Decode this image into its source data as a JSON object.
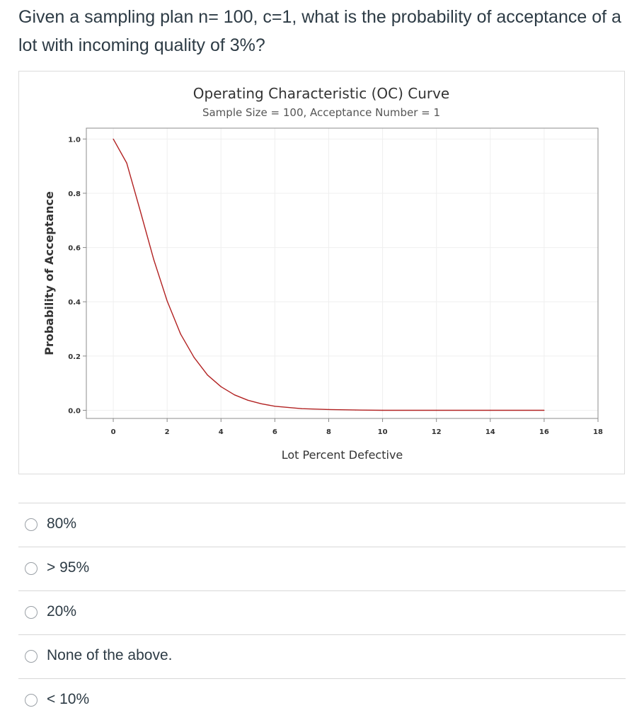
{
  "question": {
    "text": "Given a sampling plan n= 100, c=1, what is the probability of acceptance of a lot with incoming quality of 3%?"
  },
  "chart_data": {
    "type": "line",
    "title": "Operating Characteristic (OC) Curve",
    "subtitle": "Sample Size = 100, Acceptance Number = 1",
    "xlabel": "Lot Percent Defective",
    "ylabel": "Probability of Acceptance",
    "xlim": [
      -1,
      18
    ],
    "ylim": [
      -0.03,
      1.04
    ],
    "x_ticks": [
      0,
      2,
      4,
      6,
      8,
      10,
      12,
      14,
      16,
      18
    ],
    "y_ticks": [
      0.0,
      0.2,
      0.4,
      0.6,
      0.8,
      1.0
    ],
    "x_tick_labels": [
      "0",
      "2",
      "4",
      "6",
      "8",
      "10",
      "12",
      "14",
      "16",
      "18"
    ],
    "y_tick_labels": [
      "0.0",
      "0.2",
      "0.4",
      "0.6",
      "0.8",
      "1.0"
    ],
    "grid": true,
    "series": [
      {
        "color": "#b22222",
        "x": [
          0,
          0.5,
          1,
          1.5,
          2,
          2.5,
          3,
          3.5,
          4,
          4.5,
          5,
          5.5,
          6,
          7,
          8,
          9,
          10,
          12,
          14,
          16
        ],
        "y": [
          1.0,
          0.911,
          0.736,
          0.557,
          0.403,
          0.281,
          0.195,
          0.13,
          0.087,
          0.057,
          0.037,
          0.024,
          0.015,
          0.006,
          0.003,
          0.001,
          0.0,
          0.0,
          0.0,
          0.0
        ]
      }
    ]
  },
  "answers": [
    {
      "label": "80%"
    },
    {
      "label": "> 95%"
    },
    {
      "label": "20%"
    },
    {
      "label": "None of the above."
    },
    {
      "label": "< 10%"
    }
  ]
}
